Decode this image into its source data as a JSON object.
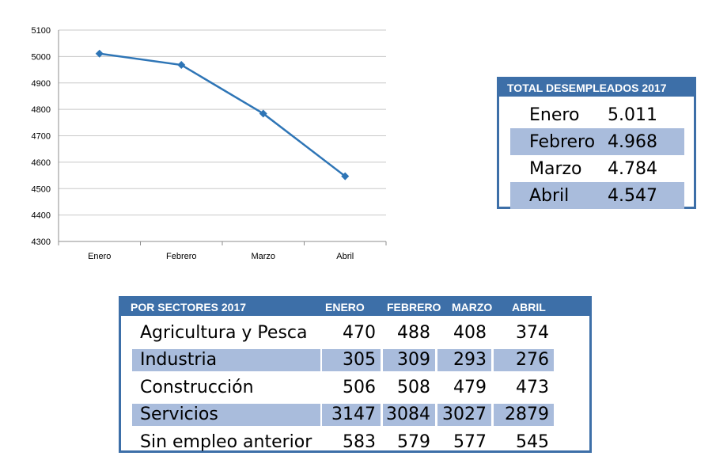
{
  "chart_data": {
    "type": "line",
    "categories": [
      "Enero",
      "Febrero",
      "Marzo",
      "Abril"
    ],
    "series": [
      {
        "values": [
          5011,
          4968,
          4784,
          4547
        ],
        "color": "#2e75b6"
      }
    ],
    "yticks": [
      4300,
      4400,
      4500,
      4600,
      4700,
      4800,
      4900,
      5000,
      5100
    ],
    "ylim": [
      4300,
      5100
    ],
    "grid": true,
    "marker": "diamond"
  },
  "total_table": {
    "title": "TOTAL DESEMPLEADOS 2017",
    "rows": [
      {
        "month": "Enero",
        "value": "5.011"
      },
      {
        "month": "Febrero",
        "value": "4.968"
      },
      {
        "month": "Marzo",
        "value": "4.784"
      },
      {
        "month": "Abril",
        "value": "4.547"
      }
    ]
  },
  "sector_table": {
    "title": "POR SECTORES 2017",
    "columns": [
      "ENERO",
      "FEBRERO",
      "MARZO",
      "ABRIL"
    ],
    "rows": [
      {
        "name": "Agricultura y Pesca",
        "values": [
          "470",
          "488",
          "408",
          "374"
        ]
      },
      {
        "name": "Industria",
        "values": [
          "305",
          "309",
          "293",
          "276"
        ]
      },
      {
        "name": "Construcción",
        "values": [
          "506",
          "508",
          "479",
          "473"
        ]
      },
      {
        "name": "Servicios",
        "values": [
          "3147",
          "3084",
          "3027",
          "2879"
        ]
      },
      {
        "name": "Sin empleo anterior",
        "values": [
          "583",
          "579",
          "577",
          "545"
        ]
      }
    ]
  },
  "colors": {
    "accent": "#3d6fa8",
    "row_shade": "#a9bcdc",
    "line": "#2e75b6"
  }
}
